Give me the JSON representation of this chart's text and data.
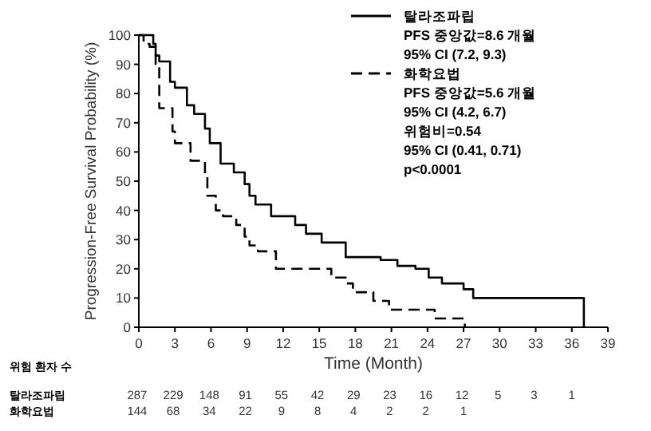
{
  "chart_data": {
    "type": "step",
    "xlabel": "Time (Month)",
    "ylabel": "Progression-Free Survival Probability (%)",
    "xlim": [
      0,
      39
    ],
    "xticks": [
      0,
      3,
      6,
      9,
      12,
      15,
      18,
      21,
      24,
      27,
      30,
      33,
      36,
      39
    ],
    "ylim": [
      0,
      100
    ],
    "yticks": [
      0,
      10,
      20,
      30,
      40,
      50,
      60,
      70,
      80,
      90,
      100
    ],
    "legend": "top right",
    "grid": false,
    "series": [
      {
        "name": "탈라조파립",
        "color": "#000000",
        "line_style": "solid",
        "x": [
          0,
          1.2,
          1.4,
          1.7,
          2.6,
          3.0,
          4.0,
          4.6,
          5.5,
          5.9,
          6.8,
          7.9,
          8.8,
          9.2,
          9.7,
          11.0,
          13.0,
          13.9,
          15.2,
          17.2,
          20.1,
          21.5,
          23.0,
          24.1,
          25.2,
          27.0,
          27.8,
          37.0
        ],
        "values": [
          100,
          97,
          93,
          91,
          84,
          82,
          76,
          73,
          68,
          63,
          56,
          53,
          49,
          45,
          42,
          38,
          35,
          32,
          29,
          24,
          23,
          21,
          20,
          17,
          15,
          13,
          10,
          0
        ]
      },
      {
        "name": "화학요법",
        "color": "#000000",
        "line_style": "dashed",
        "x": [
          0,
          0.4,
          0.9,
          1.4,
          1.7,
          2.8,
          3.0,
          4.3,
          5.5,
          5.7,
          6.4,
          7.0,
          8.1,
          8.8,
          9.2,
          9.9,
          11.4,
          16.0,
          17.2,
          17.8,
          19.5,
          20.8,
          24.6,
          27.1
        ],
        "values": [
          100,
          97,
          96,
          90,
          75,
          67,
          63,
          57,
          52,
          45,
          40,
          38,
          35,
          31,
          28,
          26,
          20,
          17,
          15,
          12,
          9,
          6,
          3,
          0
        ]
      }
    ],
    "annotations": [
      "PFS 중앙값=8.6 개월",
      "95% CI (7.2, 9.3)",
      "PFS 중앙값=5.6 개월",
      "95% CI (4.2, 6.7)",
      "위험비=0.54",
      "95% CI (0.41, 0.71)",
      "p<0.0001",
      "위험 환자 수",
      "287 229 148 91 55 42 29 23 16 12 5 3 1",
      "144 68 34 22 9 8 4 2 2 1"
    ]
  }
}
